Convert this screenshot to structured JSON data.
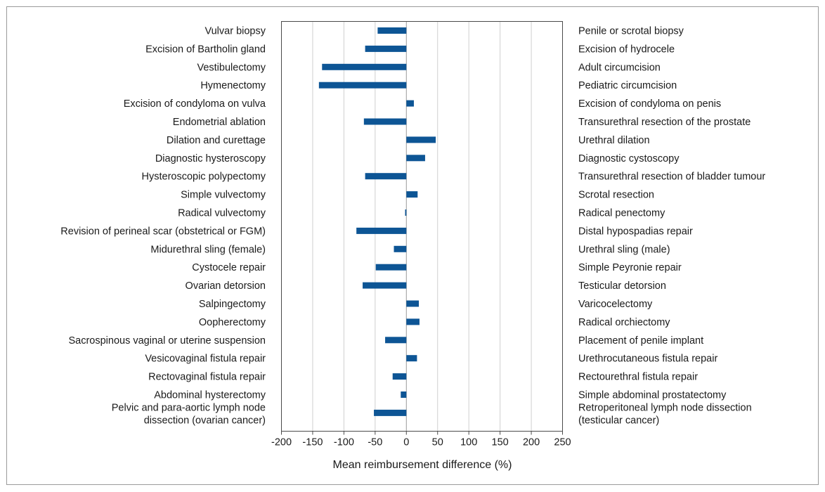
{
  "chart_data": {
    "type": "bar",
    "orientation": "horizontal",
    "xlabel": "Mean reimbursement difference (%)",
    "xlim": [
      -200,
      250
    ],
    "xticks": [
      -200,
      -150,
      -100,
      -50,
      0,
      50,
      100,
      150,
      200,
      250
    ],
    "grid": true,
    "color": "#0d5595",
    "rows": [
      {
        "female": [
          "Vulvar biopsy"
        ],
        "male": [
          "Penile or scrotal biopsy"
        ],
        "value": -46
      },
      {
        "female": [
          "Excision of Bartholin gland"
        ],
        "male": [
          "Excision of hydrocele"
        ],
        "value": -66
      },
      {
        "female": [
          "Vestibulectomy"
        ],
        "male": [
          "Adult circumcision"
        ],
        "value": -135
      },
      {
        "female": [
          "Hymenectomy"
        ],
        "male": [
          "Pediatric circumcision"
        ],
        "value": -140
      },
      {
        "female": [
          "Excision of condyloma on vulva"
        ],
        "male": [
          "Excision of condyloma on penis"
        ],
        "value": 12
      },
      {
        "female": [
          "Endometrial ablation"
        ],
        "male": [
          "Transurethral resection of the prostate"
        ],
        "value": -68
      },
      {
        "female": [
          "Dilation and curettage"
        ],
        "male": [
          "Urethral dilation"
        ],
        "value": 47
      },
      {
        "female": [
          "Diagnostic hysteroscopy"
        ],
        "male": [
          "Diagnostic cystoscopy"
        ],
        "value": 30
      },
      {
        "female": [
          "Hysteroscopic polypectomy"
        ],
        "male": [
          "Transurethral resection of bladder tumour"
        ],
        "value": -66
      },
      {
        "female": [
          "Simple vulvectomy"
        ],
        "male": [
          "Scrotal resection"
        ],
        "value": 18
      },
      {
        "female": [
          "Radical vulvectomy"
        ],
        "male": [
          "Radical penectomy"
        ],
        "value": -2
      },
      {
        "female": [
          "Revision of perineal scar (obstetrical or FGM)"
        ],
        "male": [
          "Distal hypospadias repair"
        ],
        "value": -80
      },
      {
        "female": [
          "Midurethral sling (female)"
        ],
        "male": [
          "Urethral sling (male)"
        ],
        "value": -20
      },
      {
        "female": [
          "Cystocele repair"
        ],
        "male": [
          "Simple Peyronie repair"
        ],
        "value": -49
      },
      {
        "female": [
          "Ovarian detorsion"
        ],
        "male": [
          "Testicular detorsion"
        ],
        "value": -70
      },
      {
        "female": [
          "Salpingectomy"
        ],
        "male": [
          "Varicocelectomy"
        ],
        "value": 20
      },
      {
        "female": [
          "Oopherectomy"
        ],
        "male": [
          "Radical orchiectomy"
        ],
        "value": 21
      },
      {
        "female": [
          "Sacrospinous vaginal or uterine suspension"
        ],
        "male": [
          "Placement of penile implant"
        ],
        "value": -34
      },
      {
        "female": [
          "Vesicovaginal fistula repair"
        ],
        "male": [
          "Urethrocutaneous fistula repair"
        ],
        "value": 17
      },
      {
        "female": [
          "Rectovaginal fistula repair"
        ],
        "male": [
          "Rectourethral fistula repair"
        ],
        "value": -22
      },
      {
        "female": [
          "Abdominal hysterectomy"
        ],
        "male": [
          "Simple abdominal prostatectomy"
        ],
        "value": -9
      },
      {
        "female": [
          "Pelvic and para-aortic lymph node",
          "dissection (ovarian cancer)"
        ],
        "male": [
          "Retroperitoneal lymph node dissection",
          "(testicular cancer)"
        ],
        "value": -52
      }
    ]
  }
}
